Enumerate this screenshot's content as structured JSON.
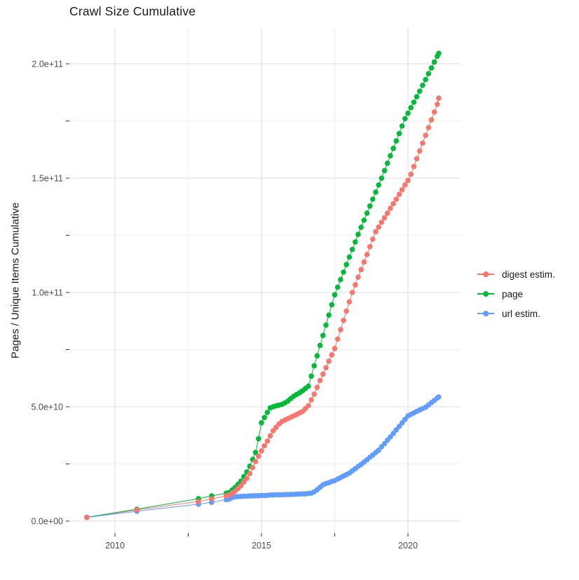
{
  "title": "Crawl Size Cumulative",
  "y_axis_title": "Pages / Unique Items Cumulative",
  "chart_data": {
    "type": "scatter",
    "title": "Crawl Size Cumulative",
    "xlabel": "",
    "ylabel": "Pages / Unique Items Cumulative",
    "unit": "values in 1e9 (billions); y tick 5.0e+10 = 50",
    "grid": true,
    "legend_position": "right",
    "x_tick_years": [
      2010,
      2015,
      2020
    ],
    "x_tick_labels": [
      "2010",
      "2015",
      "2020"
    ],
    "x_minor_years": [
      2012.5,
      2017.5
    ],
    "y_tick_values_e9": [
      0,
      50,
      100,
      150,
      200
    ],
    "y_tick_labels": [
      "0.0e+00",
      "5.0e+10",
      "1.0e+11",
      "1.5e+11",
      "2.0e+11"
    ],
    "y_minor_values_e9": [
      25,
      75,
      125,
      175
    ],
    "x_range_years": [
      2008.45,
      2021.85
    ],
    "y_range_e9": [
      -5,
      216
    ],
    "x": [
      2009.04,
      2010.75,
      2012.85,
      2013.3,
      2013.8,
      2013.9,
      2014.0,
      2014.1,
      2014.2,
      2014.3,
      2014.4,
      2014.5,
      2014.6,
      2014.7,
      2014.8,
      2014.9,
      2015.0,
      2015.1,
      2015.2,
      2015.3,
      2015.4,
      2015.5,
      2015.6,
      2015.7,
      2015.8,
      2015.9,
      2016.0,
      2016.1,
      2016.2,
      2016.3,
      2016.4,
      2016.5,
      2016.6,
      2016.7,
      2016.8,
      2016.9,
      2017.0,
      2017.1,
      2017.2,
      2017.3,
      2017.4,
      2017.5,
      2017.6,
      2017.7,
      2017.8,
      2017.9,
      2018.0,
      2018.1,
      2018.2,
      2018.3,
      2018.4,
      2018.5,
      2018.6,
      2018.7,
      2018.8,
      2018.9,
      2019.0,
      2019.1,
      2019.2,
      2019.3,
      2019.4,
      2019.5,
      2019.6,
      2019.7,
      2019.8,
      2019.9,
      2020.0,
      2020.1,
      2020.2,
      2020.3,
      2020.4,
      2020.5,
      2020.6,
      2020.7,
      2020.8,
      2020.9,
      2021.0,
      2021.05
    ],
    "series": [
      {
        "name": "digest estim.",
        "color": "#F8766D",
        "values": [
          1.6,
          4.9,
          8.6,
          9.7,
          11.0,
          11.3,
          12.2,
          13.1,
          14.3,
          15.5,
          17.1,
          18.7,
          20.8,
          23.4,
          26.0,
          28.4,
          30.7,
          32.9,
          35.0,
          37.3,
          39.5,
          41.0,
          42.5,
          43.6,
          44.2,
          44.8,
          45.4,
          46.0,
          46.6,
          47.3,
          47.9,
          49.2,
          50.5,
          53.0,
          55.5,
          58.5,
          61.5,
          64.3,
          67.1,
          69.9,
          72.7,
          75.5,
          79.6,
          83.7,
          87.8,
          91.8,
          95.9,
          100.0,
          103.3,
          106.7,
          110.0,
          113.3,
          116.6,
          120.0,
          123.3,
          126.6,
          128.6,
          130.7,
          132.7,
          134.7,
          136.8,
          138.8,
          140.8,
          142.9,
          144.9,
          147.0,
          149.0,
          151.7,
          155.1,
          158.5,
          161.9,
          165.3,
          168.7,
          172.1,
          175.5,
          178.9,
          182.3,
          185.0
        ]
      },
      {
        "name": "page",
        "color": "#00BA38",
        "values": [
          1.7,
          5.2,
          9.8,
          11.0,
          12.2,
          12.5,
          13.6,
          14.7,
          16.1,
          17.5,
          19.5,
          21.5,
          24.0,
          27.0,
          30.0,
          36.0,
          43.0,
          45.3,
          47.5,
          49.5,
          50.0,
          50.4,
          50.7,
          51.1,
          51.7,
          52.5,
          53.6,
          54.6,
          55.4,
          56.1,
          57.0,
          58.0,
          59.0,
          63.4,
          67.9,
          72.3,
          76.8,
          81.2,
          85.7,
          90.1,
          94.6,
          99.0,
          102.3,
          105.6,
          108.9,
          112.2,
          115.5,
          118.8,
          122.1,
          125.4,
          128.5,
          131.6,
          134.7,
          137.8,
          140.8,
          143.9,
          147.0,
          150.0,
          153.3,
          156.5,
          159.8,
          163.0,
          166.3,
          169.5,
          172.8,
          176.0,
          178.4,
          180.8,
          183.2,
          185.6,
          188.0,
          190.6,
          193.1,
          195.7,
          198.2,
          200.8,
          203.3,
          204.6
        ]
      },
      {
        "name": "url estim.",
        "color": "#619CFF",
        "values": [
          1.6,
          4.3,
          7.4,
          8.2,
          9.4,
          9.6,
          10.3,
          10.6,
          10.7,
          10.8,
          10.9,
          10.9,
          11.0,
          11.0,
          11.1,
          11.1,
          11.2,
          11.2,
          11.3,
          11.4,
          11.4,
          11.5,
          11.5,
          11.5,
          11.6,
          11.6,
          11.7,
          11.7,
          11.8,
          11.8,
          11.9,
          11.9,
          12.1,
          12.2,
          12.8,
          13.7,
          14.8,
          15.9,
          16.4,
          16.8,
          17.3,
          17.7,
          18.4,
          19.0,
          19.7,
          20.3,
          21.0,
          22.0,
          22.9,
          23.9,
          24.8,
          25.8,
          26.8,
          27.9,
          28.9,
          30.0,
          31.0,
          32.5,
          33.9,
          35.4,
          36.8,
          38.3,
          39.9,
          41.4,
          42.9,
          44.5,
          46.0,
          46.7,
          47.3,
          48.0,
          48.6,
          49.2,
          49.8,
          50.8,
          51.8,
          52.8,
          53.8,
          54.3
        ]
      }
    ],
    "colors": {
      "grid_major": "#e3e3e3",
      "grid_minor": "#f1f1f1",
      "tick": "#333333",
      "tick_label": "#4d4d4d",
      "text": "#1a1a1a",
      "background": "#ffffff"
    }
  }
}
